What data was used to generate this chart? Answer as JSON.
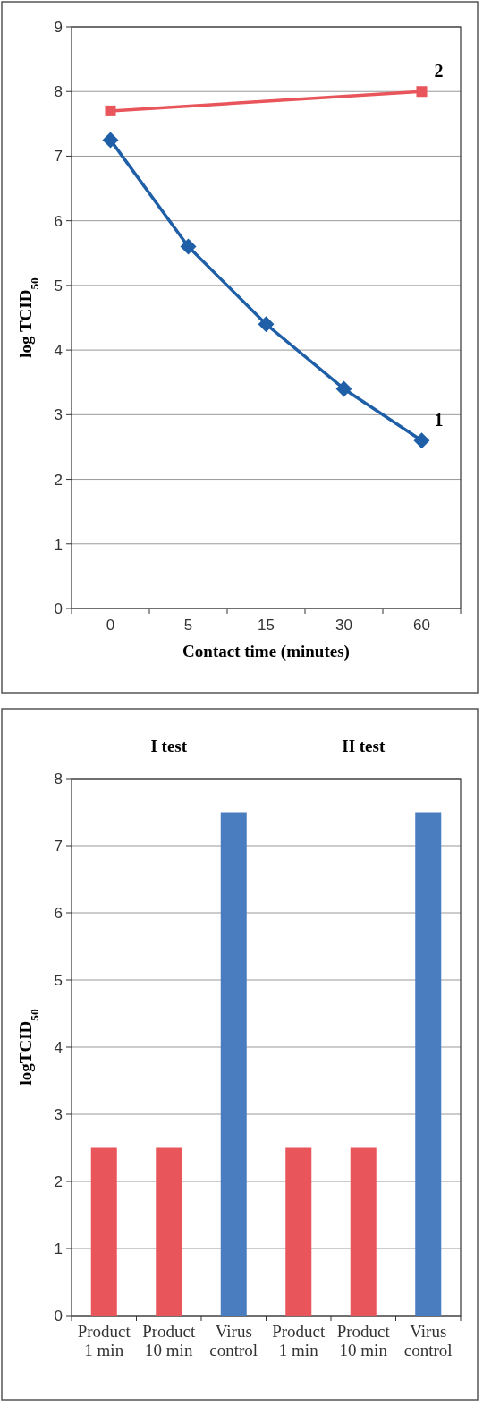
{
  "chart_data": [
    {
      "type": "line",
      "xlabel": "Contact time (minutes)",
      "ylabel": "log TCID$_{50}$",
      "categories": [
        "0",
        "5",
        "15",
        "30",
        "60"
      ],
      "ylim": [
        0,
        9
      ],
      "yticks": [
        0,
        1,
        2,
        3,
        4,
        5,
        6,
        7,
        8,
        9
      ],
      "grid": "y",
      "line_style": "solid",
      "series": [
        {
          "name": "1",
          "color": "#1f5fa8",
          "marker": "diamond",
          "values": [
            7.25,
            5.6,
            4.4,
            3.4,
            2.6
          ]
        },
        {
          "name": "2",
          "color": "#e8555a",
          "marker": "square",
          "values": [
            7.7,
            null,
            null,
            null,
            8.0
          ]
        }
      ]
    },
    {
      "type": "bar",
      "ylabel": "logTCID$_{50}$",
      "categories": [
        "Product 1 min",
        "Product 10 min",
        "Virus control",
        "Product 1 min",
        "Product 10 min",
        "Virus control"
      ],
      "values": [
        2.5,
        2.5,
        7.5,
        2.5,
        2.5,
        7.5
      ],
      "colors": [
        "#e8555a",
        "#e8555a",
        "#4a7cc0",
        "#e8555a",
        "#e8555a",
        "#4a7cc0"
      ],
      "ylim": [
        0,
        8
      ],
      "yticks": [
        0,
        1,
        2,
        3,
        4,
        5,
        6,
        7,
        8
      ],
      "grid": "y",
      "annotations": [
        "I test",
        "II test"
      ]
    }
  ]
}
